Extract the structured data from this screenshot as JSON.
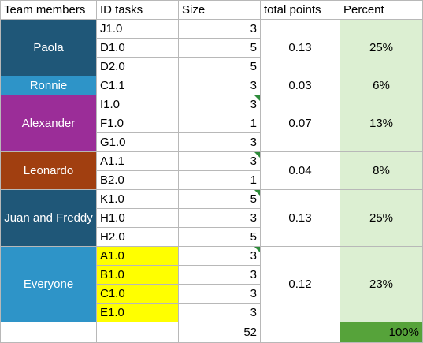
{
  "headers": {
    "team": "Team members",
    "id": "ID tasks",
    "size": "Size",
    "points": "total points",
    "percent": "Percent"
  },
  "groups": [
    {
      "name": "Paola",
      "color": "#1f5778",
      "points": "0.13",
      "percent": "25%",
      "tasks": [
        {
          "id": "J1.0",
          "size": "3"
        },
        {
          "id": "D1.0",
          "size": "5"
        },
        {
          "id": "D2.0",
          "size": "5"
        }
      ]
    },
    {
      "name": "Ronnie",
      "color": "#2e94c8",
      "points": "0.03",
      "percent": "6%",
      "tasks": [
        {
          "id": "C1.1",
          "size": "3"
        }
      ]
    },
    {
      "name": "Alexander",
      "color": "#9b2d98",
      "points": "0.07",
      "percent": "13%",
      "tasks": [
        {
          "id": "I1.0",
          "size": "3"
        },
        {
          "id": "F1.0",
          "size": "1"
        },
        {
          "id": "G1.0",
          "size": "3"
        }
      ]
    },
    {
      "name": "Leonardo",
      "color": "#a13f10",
      "points": "0.04",
      "percent": "8%",
      "tasks": [
        {
          "id": "A1.1",
          "size": "3"
        },
        {
          "id": "B2.0",
          "size": "1"
        }
      ]
    },
    {
      "name": "Juan and Freddy",
      "color": "#1f5778",
      "points": "0.13",
      "percent": "25%",
      "tasks": [
        {
          "id": "K1.0",
          "size": "5"
        },
        {
          "id": "H1.0",
          "size": "3"
        },
        {
          "id": "H2.0",
          "size": "5"
        }
      ]
    },
    {
      "name": "Everyone",
      "color": "#2e94c8",
      "points": "0.12",
      "percent": "23%",
      "tasks": [
        {
          "id": "A1.0",
          "size": "3",
          "highlight": true
        },
        {
          "id": "B1.0",
          "size": "3",
          "highlight": true
        },
        {
          "id": "C1.0",
          "size": "3",
          "highlight": true
        },
        {
          "id": "E1.0",
          "size": "3",
          "highlight": true
        }
      ]
    }
  ],
  "totals": {
    "size": "52",
    "percent": "100%"
  },
  "colors": {
    "percent_fill": "#dcefd2",
    "total_percent_fill": "#56a33a",
    "highlight_fill": "#ffff00",
    "team_text": "#ffffff",
    "comment_marker": "#2e8b3a"
  }
}
